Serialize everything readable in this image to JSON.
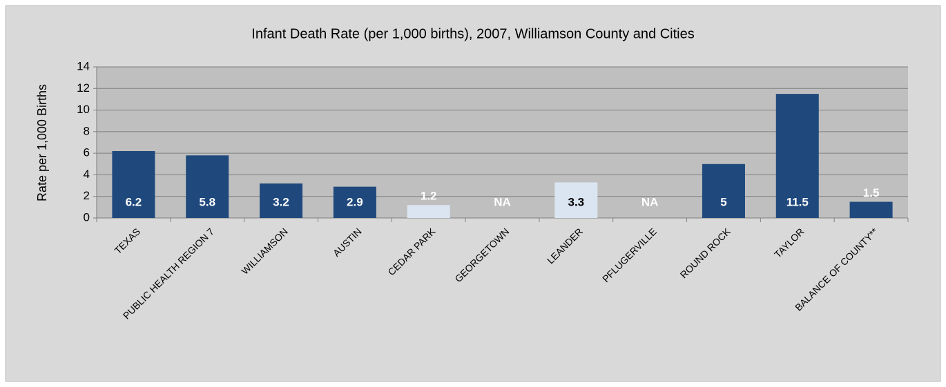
{
  "chart_data": {
    "type": "bar",
    "title": "Infant Death Rate (per 1,000 births), 2007, Williamson County and Cities",
    "y_label": "Rate per 1,000 Births",
    "categories": [
      "TEXAS",
      "PUBLIC HEALTH REGION 7",
      "WILLIAMSON",
      "AUSTIN",
      "CEDAR PARK",
      "GEORGETOWN",
      "LEANDER",
      "PFLUGERVILLE",
      "ROUND ROCK",
      "TAYLOR",
      "BALANCE OF COUNTY**"
    ],
    "values": [
      6.2,
      5.8,
      3.2,
      2.9,
      1.2,
      null,
      3.3,
      null,
      5,
      11.5,
      1.5
    ],
    "value_labels": [
      "6.2",
      "5.8",
      "3.2",
      "2.9",
      "1.2",
      "NA",
      "3.3",
      "NA",
      "5",
      "11.5",
      "1.5"
    ],
    "colors": [
      "#1f497d",
      "#1f497d",
      "#1f497d",
      "#1f497d",
      "#dbe5f1",
      "#1f497d",
      "#dbe5f1",
      "#1f497d",
      "#1f497d",
      "#1f497d",
      "#1f497d"
    ],
    "label_colors": [
      "#ffffff",
      "#ffffff",
      "#ffffff",
      "#ffffff",
      "#ffffff",
      "#ffffff",
      "#000000",
      "#ffffff",
      "#ffffff",
      "#ffffff",
      "#ffffff"
    ],
    "ylim": [
      0,
      14
    ],
    "yticks": [
      0,
      2,
      4,
      6,
      8,
      10,
      12,
      14
    ],
    "grid": true
  }
}
